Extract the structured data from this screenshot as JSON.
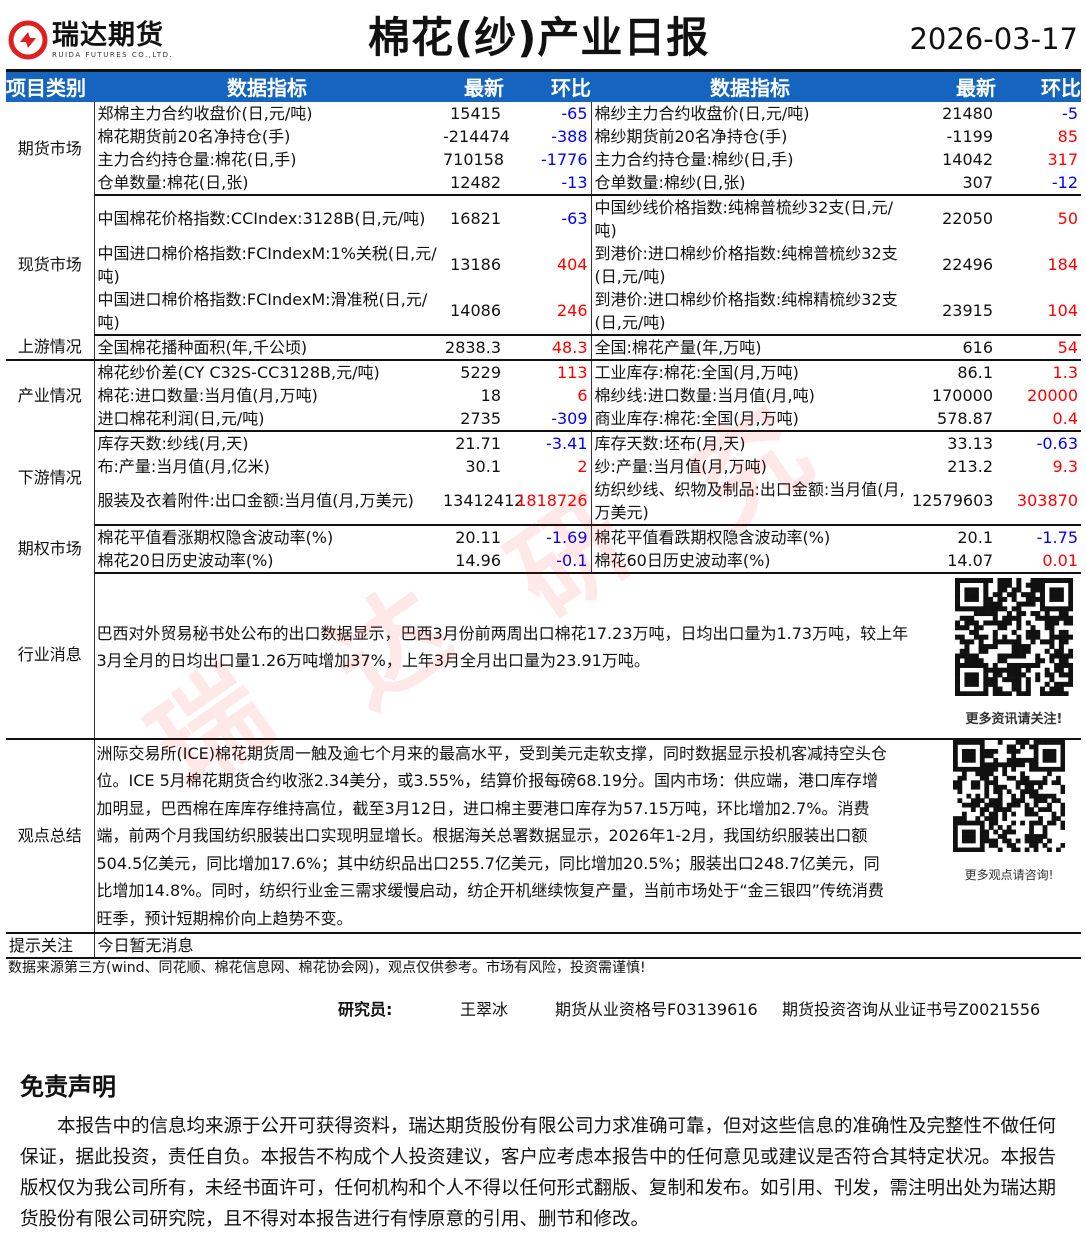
{
  "header": {
    "logo_cn": "瑞达期货",
    "logo_en": "RUIDA FUTURES CO.,LTD.",
    "title": "棉花(纱)产业日报",
    "date": "2026-03-17"
  },
  "colors": {
    "header_bg": "#1565c0",
    "up": "#ff0000",
    "down": "#0000ff",
    "logo": "#e02020"
  },
  "columns": [
    "项目类别",
    "数据指标",
    "最新",
    "环比",
    "数据指标",
    "最新",
    "环比"
  ],
  "sections": [
    {
      "category": "期货市场",
      "rows": [
        [
          "郑棉主力合约收盘价(日,元/吨)",
          "15415",
          "-65",
          "棉纱主力合约收盘价(日,元/吨)",
          "21480",
          "-5"
        ],
        [
          "棉花期货前20名净持仓(手)",
          "-214474",
          "-388",
          "棉纱期货前20名净持仓(手)",
          "-1199",
          "85"
        ],
        [
          "主力合约持仓量:棉花(日,手)",
          "710158",
          "-1776",
          "主力合约持仓量:棉纱(日,手)",
          "14042",
          "317"
        ],
        [
          "仓单数量:棉花(日,张)",
          "12482",
          "-13",
          "仓单数量:棉纱(日,张)",
          "307",
          "-12"
        ]
      ]
    },
    {
      "category": "现货市场",
      "rows": [
        [
          "中国棉花价格指数:CCIndex:3128B(日,元/吨)",
          "16821",
          "-63",
          "中国纱线价格指数:纯棉普梳纱32支(日,元/吨)",
          "22050",
          "50"
        ],
        [
          "中国进口棉价格指数:FCIndexM:1%关税(日,元/吨)",
          "13186",
          "404",
          "到港价:进口棉纱价格指数:纯棉普梳纱32支(日,元/吨)",
          "22496",
          "184"
        ],
        [
          "中国进口棉价格指数:FCIndexM:滑准税(日,元/吨)",
          "14086",
          "246",
          "到港价:进口棉纱价格指数:纯棉精梳纱32支(日,元/吨)",
          "23915",
          "104"
        ]
      ]
    },
    {
      "category": "上游情况",
      "rows": [
        [
          "全国棉花播种面积(年,千公顷)",
          "2838.3",
          "48.3",
          "全国:棉花产量(年,万吨)",
          "616",
          "54"
        ]
      ]
    },
    {
      "category": "产业情况",
      "rows": [
        [
          "棉花纱价差(CY C32S-CC3128B,元/吨)",
          "5229",
          "113",
          "工业库存:棉花:全国(月,万吨)",
          "86.1",
          "1.3"
        ],
        [
          "棉花:进口数量:当月值(月,万吨)",
          "18",
          "6",
          "棉纱线:进口数量:当月值(月,吨)",
          "170000",
          "20000"
        ],
        [
          "进口棉花利润(日,元/吨)",
          "2735",
          "-309",
          "商业库存:棉花:全国(月,万吨)",
          "578.87",
          "0.4"
        ]
      ]
    },
    {
      "category": "下游情况",
      "rows": [
        [
          "库存天数:纱线(月,天)",
          "21.71",
          "-3.41",
          "库存天数:坯布(月,天)",
          "33.13",
          "-0.63"
        ],
        [
          "布:产量:当月值(月,亿米)",
          "30.1",
          "2",
          "纱:产量:当月值(月,万吨)",
          "213.2",
          "9.3"
        ],
        [
          "服装及衣着附件:出口金额:当月值(月,万美元)",
          "13412412",
          "1818726",
          "纺织纱线、织物及制品:出口金额:当月值(月,万美元)",
          "12579603",
          "303870"
        ]
      ]
    },
    {
      "category": "期权市场",
      "rows": [
        [
          "棉花平值看涨期权隐含波动率(%)",
          "20.11",
          "-1.69",
          "棉花平值看跌期权隐含波动率(%)",
          "20.1",
          "-1.75"
        ],
        [
          "棉花20日历史波动率(%)",
          "14.96",
          "-0.1",
          "棉花60日历史波动率(%)",
          "14.07",
          "0.01"
        ]
      ]
    }
  ],
  "news": {
    "category": "行业消息",
    "text": "巴西对外贸易秘书处公布的出口数据显示，巴西3月份前两周出口棉花17.23万吨，日均出口量为1.73万吨，较上年3月全月的日均出口量1.26万吨增加37%，上年3月全月出口量为23.91万吨。",
    "qr_caption": "更多资讯请关注!"
  },
  "view": {
    "category": "观点总结",
    "text": "洲际交易所(ICE)棉花期货周一触及逾七个月来的最高水平，受到美元走软支撑，同时数据显示投机客减持空头仓位。ICE 5月棉花期货合约收涨2.34美分，或3.55%，结算价报每磅68.19分。国内市场：供应端，港口库存增加明显，巴西棉在库库存维持高位，截至3月12日，进口棉主要港口库存为57.15万吨，环比增加2.7%。消费端，前两个月我国纺织服装出口实现明显增长。根据海关总署数据显示，2026年1-2月，我国纺织服装出口额504.5亿美元，同比增加17.6%；其中纺织品出口255.7亿美元，同比增加20.5%；服装出口248.7亿美元，同比增加14.8%。同时，纺织行业金三需求缓慢启动，纺企开机继续恢复产量，当前市场处于“金三银四”传统消费旺季，预计短期棉价向上趋势不变。",
    "qr_caption": "更多观点请咨询!"
  },
  "tip": {
    "category": "提示关注",
    "text": "今日暂无消息"
  },
  "footer": {
    "source": "数据来源第三方(wind、同花顺、棉花信息网、棉花协会网)，观点仅供参考。市场有风险，投资需谨慎!",
    "researcher_label": "研究员:",
    "researcher": "王翠冰",
    "qual1": "期货从业资格号F03139616",
    "qual2": "期货投资咨询从业证书号Z0021556"
  },
  "disclaimer": {
    "title": "免责声明",
    "text": "本报告中的信息均来源于公开可获得资料，瑞达期货股份有限公司力求准确可靠，但对这些信息的准确性及完整性不做任何保证，据此投资，责任自负。本报告不构成个人投资建议，客户应考虑本报告中的任何意见或建议是否符合其特定状况。本报告版权仅为我公司所有，未经书面许可，任何机构和个人不得以任何形式翻版、复制和发布。如引用、刊发，需注明出处为瑞达期货股份有限公司研究院，且不得对本报告进行有悖原意的引用、删节和修改。"
  },
  "watermark": "瑞达研究"
}
